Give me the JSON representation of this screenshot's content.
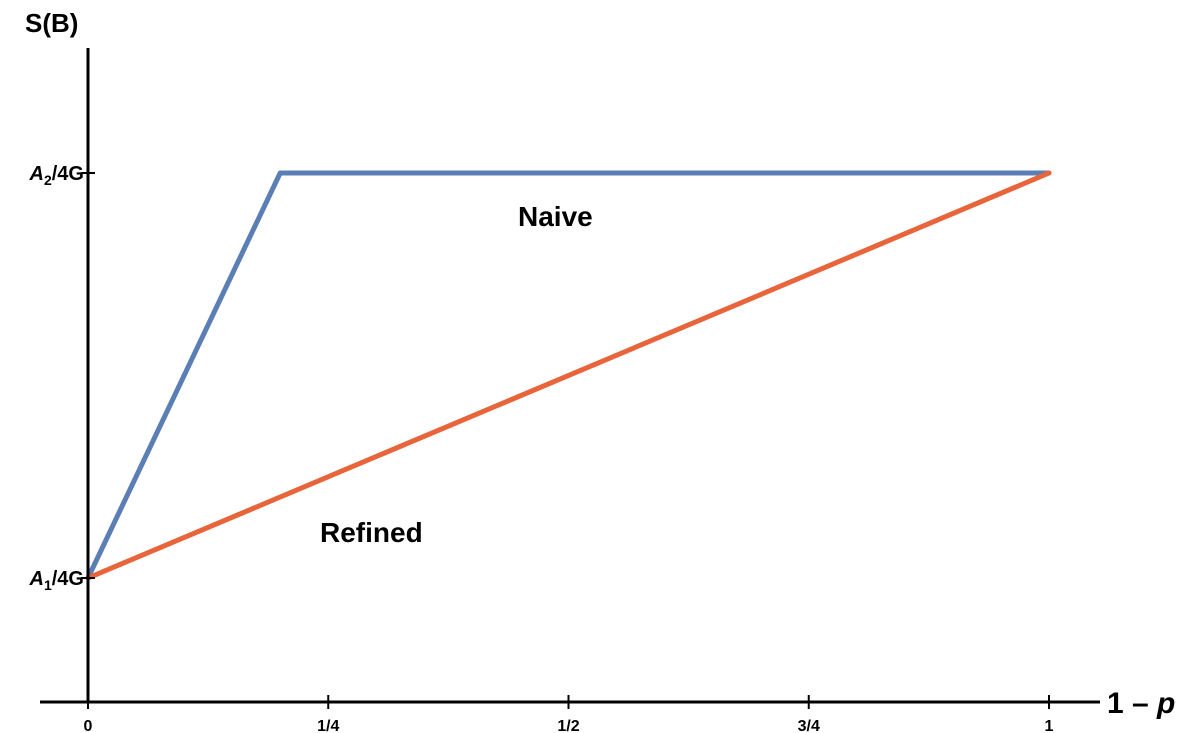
{
  "chart_data": {
    "type": "line",
    "ylabel": "S(B)",
    "xlabel": {
      "prefix": "1 – ",
      "var": "p"
    },
    "xlim": [
      0,
      1.0
    ],
    "ylim": [
      0,
      1
    ],
    "x_ticks": [
      {
        "value": 0,
        "label": "0"
      },
      {
        "value": 0.25,
        "label": "1/4"
      },
      {
        "value": 0.5,
        "label": "1/2"
      },
      {
        "value": 0.75,
        "label": "3/4"
      },
      {
        "value": 1,
        "label": "1"
      }
    ],
    "y_ticks": [
      {
        "value": 0,
        "var": "A",
        "sub": "1",
        "suffix": "/4G"
      },
      {
        "value": 1,
        "var": "A",
        "sub": "2",
        "suffix": "/4G"
      }
    ],
    "series": [
      {
        "name": "Naive",
        "color": "#5b7fb5",
        "x": [
          0,
          0.2,
          1
        ],
        "y": [
          0,
          1,
          1
        ]
      },
      {
        "name": "Refined",
        "color": "#e8643a",
        "x": [
          0,
          1
        ],
        "y": [
          0,
          1
        ]
      }
    ]
  }
}
